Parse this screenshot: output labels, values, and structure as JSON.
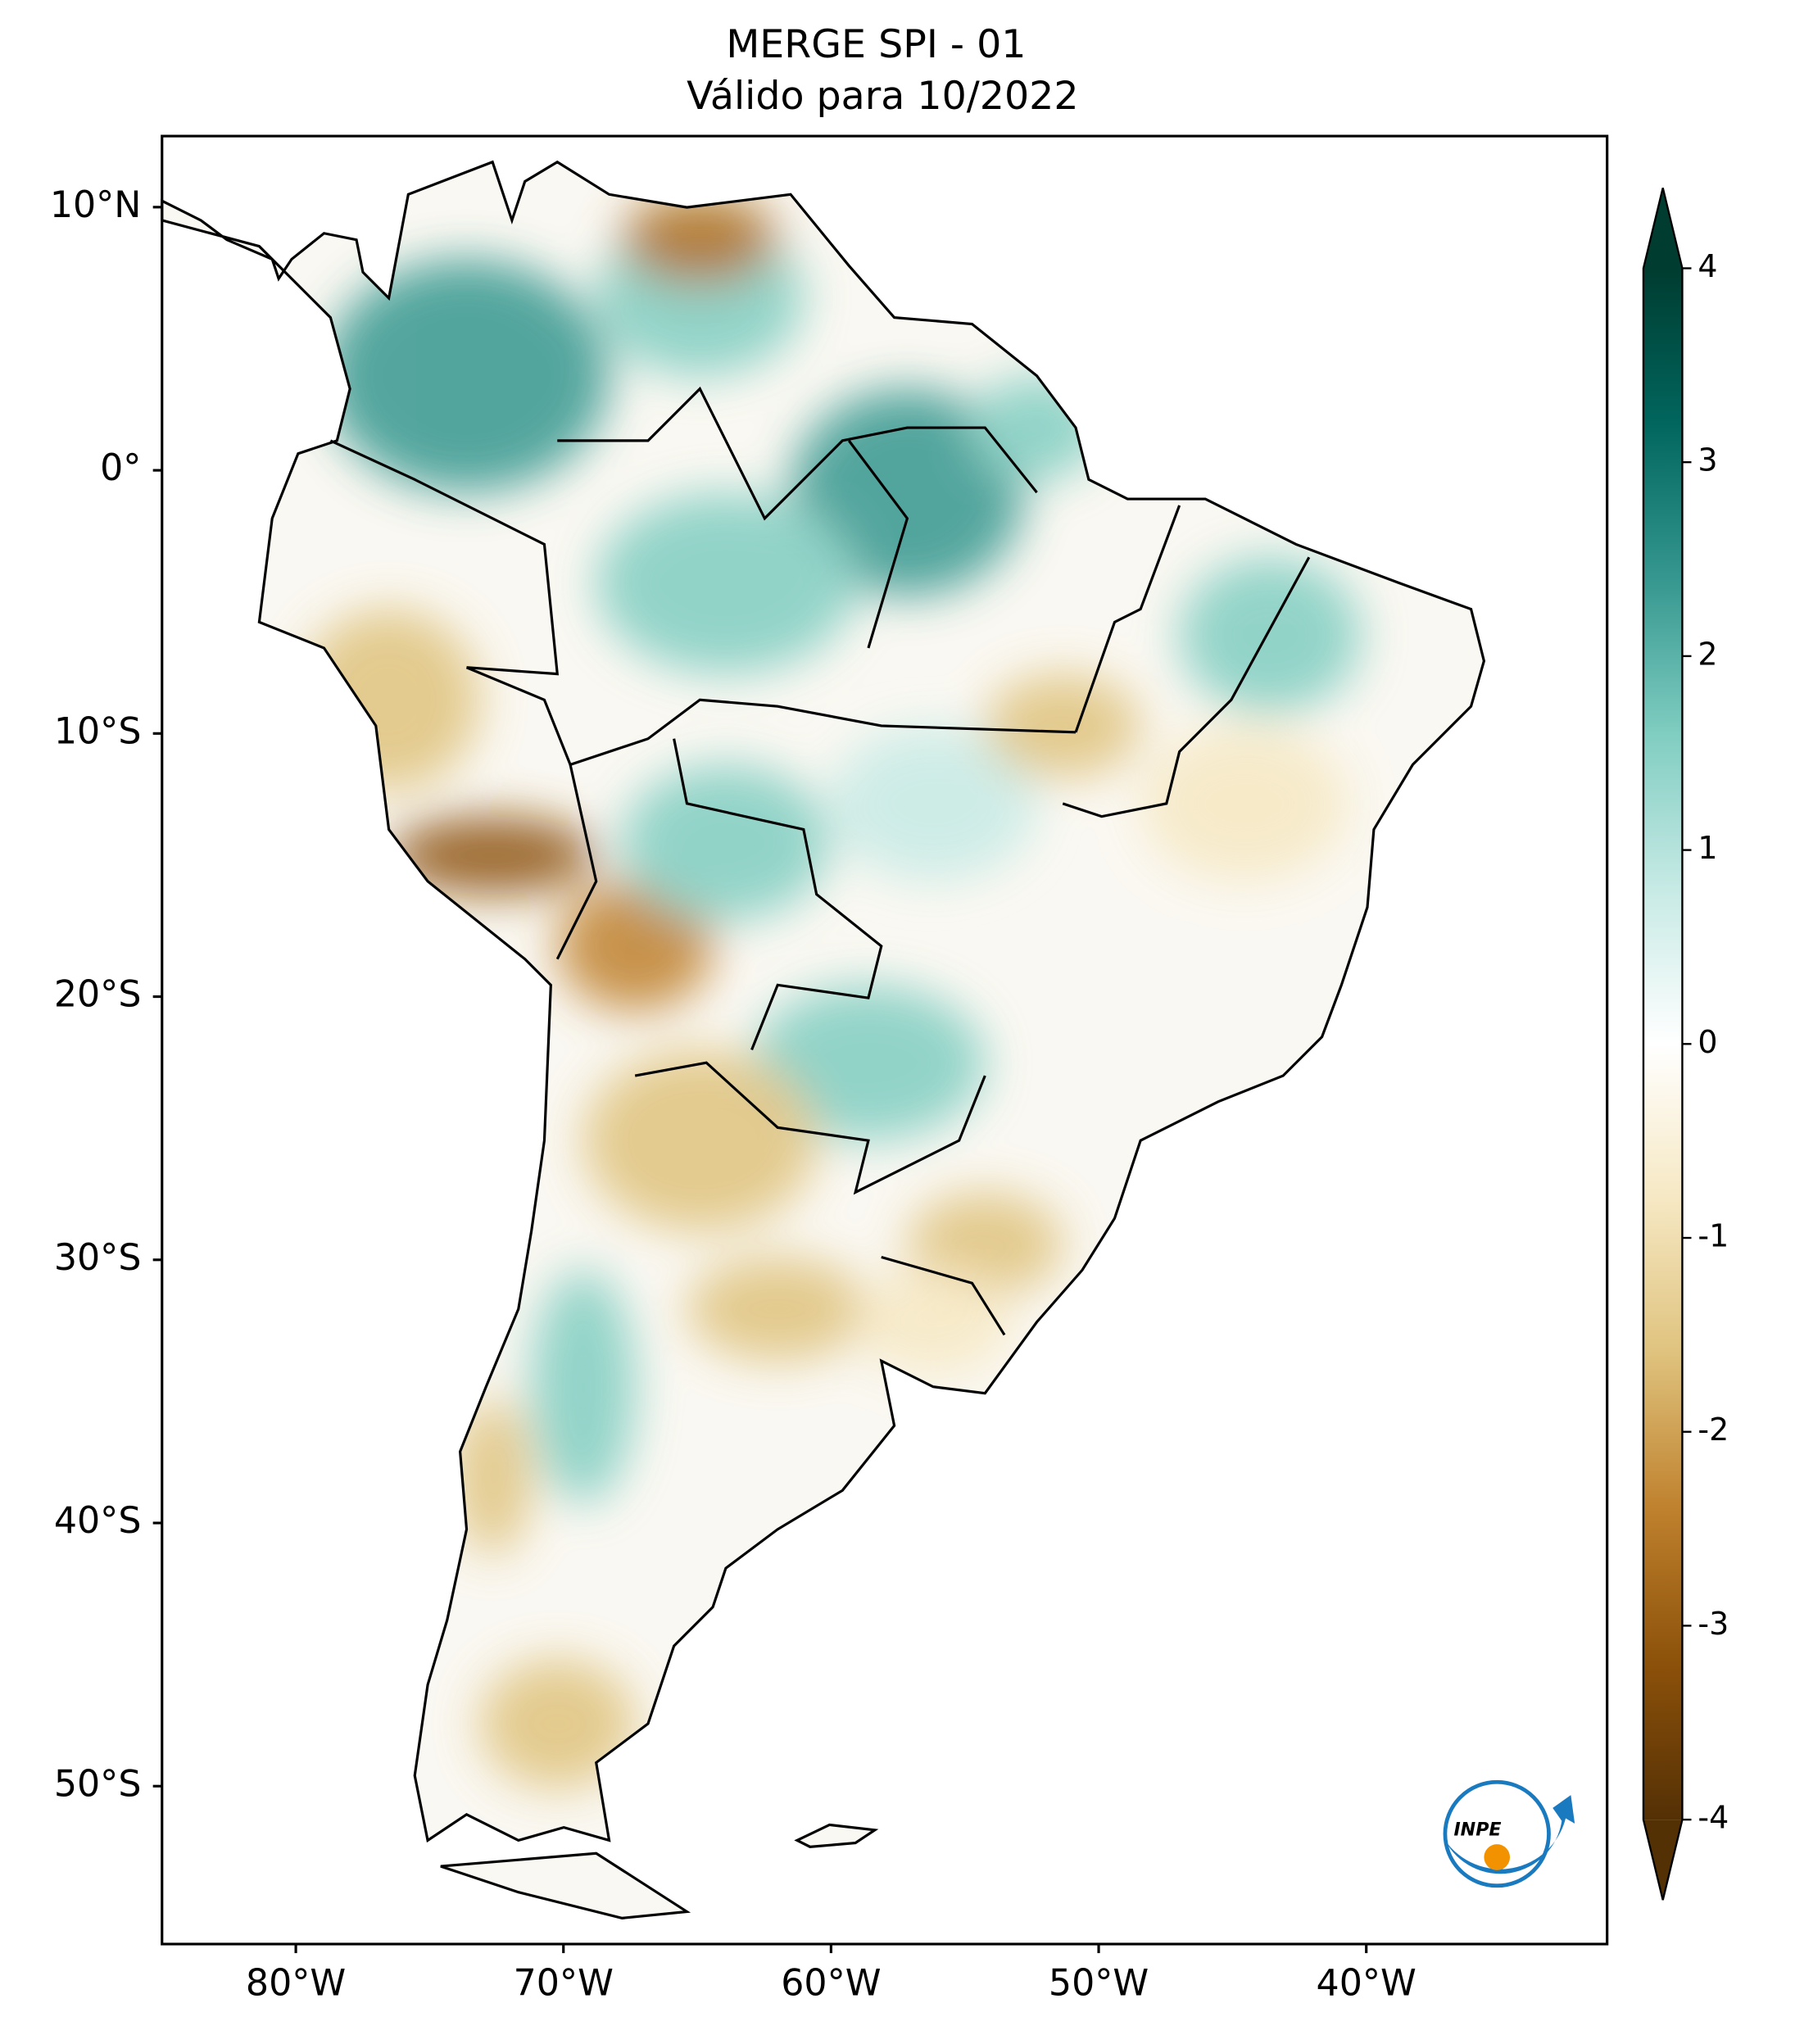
{
  "map": {
    "title": "MERGE   SPI - 01",
    "subtitle": "Válido para 10/2022",
    "xlim": [
      -85,
      -31
    ],
    "ylim": [
      -56,
      12.7
    ],
    "xticks": [
      {
        "value": -80,
        "label": "80°W"
      },
      {
        "value": -70,
        "label": "70°W"
      },
      {
        "value": -60,
        "label": "60°W"
      },
      {
        "value": -50,
        "label": "50°W"
      },
      {
        "value": -40,
        "label": "40°W"
      }
    ],
    "yticks": [
      {
        "value": 10,
        "label": "10°N"
      },
      {
        "value": 0,
        "label": "0°"
      },
      {
        "value": -10,
        "label": "10°S"
      },
      {
        "value": -20,
        "label": "20°S"
      },
      {
        "value": -30,
        "label": "30°S"
      },
      {
        "value": -40,
        "label": "40°S"
      },
      {
        "value": -50,
        "label": "50°S"
      }
    ],
    "colorbar": {
      "lim": [
        -4,
        4
      ],
      "ticks": [
        -4,
        -3,
        -2,
        -1,
        0,
        1,
        2,
        3,
        4
      ],
      "colors": [
        "#543005",
        "#8c510a",
        "#bf812d",
        "#dfc27d",
        "#f6e8c3",
        "#ffffff",
        "#c7eae5",
        "#80cdc1",
        "#35978f",
        "#01665e",
        "#003c30"
      ]
    },
    "logo": "INPE"
  }
}
